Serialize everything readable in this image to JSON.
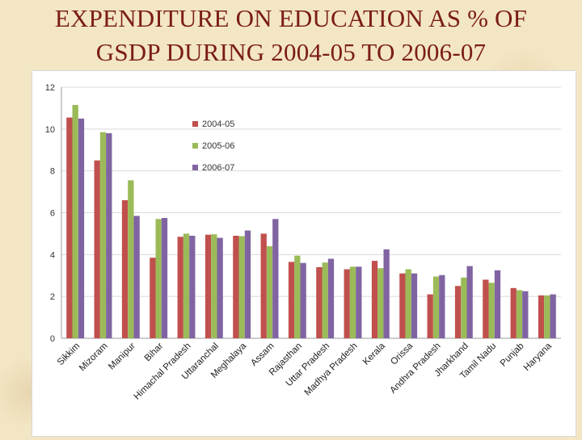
{
  "title": {
    "line1": "EXPENDITURE ON EDUCATION AS % OF",
    "line2": "GSDP DURING 2004-05 TO 2006-07"
  },
  "chart_data": {
    "type": "bar",
    "categories": [
      "Sikkim",
      "Mizoram",
      "Manipur",
      "Bihar",
      "Himachal Pradesh",
      "Uttaranchal",
      "Meghalaya",
      "Assam",
      "Rajasthan",
      "Uttar Pradesh",
      "Madhya Pradesh",
      "Kerala",
      "Orissa",
      "Andhra Pradesh",
      "Jharkhand",
      "Tamil Nadu",
      "Punjab",
      "Haryana"
    ],
    "series": [
      {
        "name": "2004-05",
        "color": "#c0504d",
        "values": [
          10.55,
          8.5,
          6.6,
          3.85,
          4.85,
          4.95,
          4.9,
          5.0,
          3.65,
          3.4,
          3.3,
          3.7,
          3.1,
          2.1,
          2.5,
          2.8,
          2.4,
          2.05
        ]
      },
      {
        "name": "2005-06",
        "color": "#9bbb59",
        "values": [
          11.15,
          9.85,
          7.55,
          5.7,
          5.0,
          4.97,
          4.88,
          4.4,
          3.95,
          3.62,
          3.42,
          3.35,
          3.3,
          2.95,
          2.9,
          2.65,
          2.3,
          2.05
        ]
      },
      {
        "name": "2006-07",
        "color": "#8064a2",
        "values": [
          10.5,
          9.8,
          5.85,
          5.75,
          4.9,
          4.8,
          5.15,
          5.7,
          3.6,
          3.8,
          3.42,
          4.25,
          3.1,
          3.02,
          3.45,
          3.25,
          2.25,
          2.1
        ]
      }
    ],
    "ylim": [
      0,
      12
    ],
    "yticks": [
      0,
      2,
      4,
      6,
      8,
      10,
      12
    ],
    "grid": true,
    "legend_position": "top-center"
  }
}
